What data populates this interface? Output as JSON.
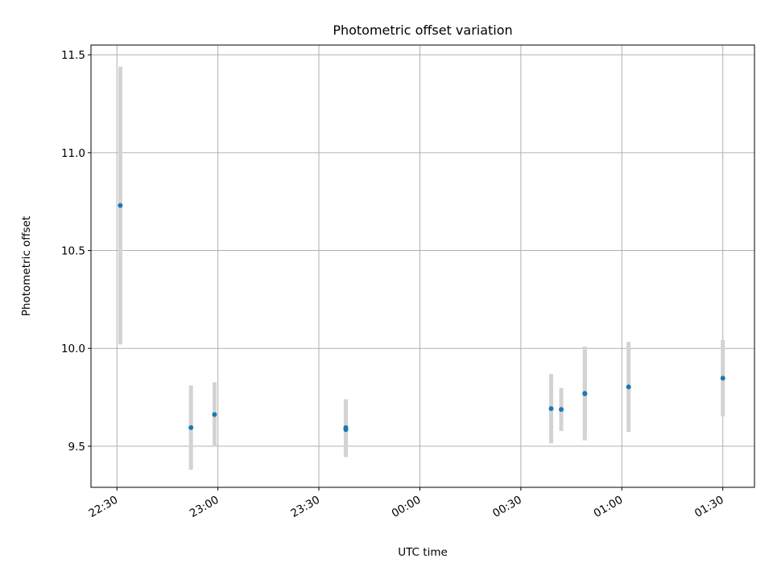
{
  "chart_data": {
    "type": "scatter",
    "title": "Photometric offset variation",
    "xlabel": "UTC time",
    "ylabel": "Photometric offset",
    "x_tick_labels": [
      "22:30",
      "23:00",
      "23:30",
      "00:00",
      "00:30",
      "01:00",
      "01:30"
    ],
    "y_tick_labels": [
      "9.5",
      "10.0",
      "10.5",
      "11.0",
      "11.5"
    ],
    "y_ticks": [
      9.5,
      10.0,
      10.5,
      11.0,
      11.5
    ],
    "xlim_minutes_since_2230": [
      -7.7,
      189.4
    ],
    "ylim": [
      9.29,
      11.55
    ],
    "grid": true,
    "point_color": "#1f77b4",
    "errorbar_color": "#d3d3d3",
    "points": [
      {
        "time": "22:31",
        "y": 10.73,
        "err": 0.71
      },
      {
        "time": "22:52",
        "y": 9.595,
        "err": 0.215
      },
      {
        "time": "22:59",
        "y": 9.662,
        "err": 0.165
      },
      {
        "time": "23:38",
        "y": 9.585,
        "err": 0.14
      },
      {
        "time": "23:38",
        "y": 9.595,
        "err": 0.145
      },
      {
        "time": "00:39",
        "y": 9.692,
        "err": 0.177
      },
      {
        "time": "00:42",
        "y": 9.688,
        "err": 0.11
      },
      {
        "time": "00:49",
        "y": 9.77,
        "err": 0.24
      },
      {
        "time": "00:49",
        "y": 9.768,
        "err": 0.22
      },
      {
        "time": "01:02",
        "y": 9.803,
        "err": 0.23
      },
      {
        "time": "01:30",
        "y": 9.848,
        "err": 0.195
      }
    ]
  }
}
